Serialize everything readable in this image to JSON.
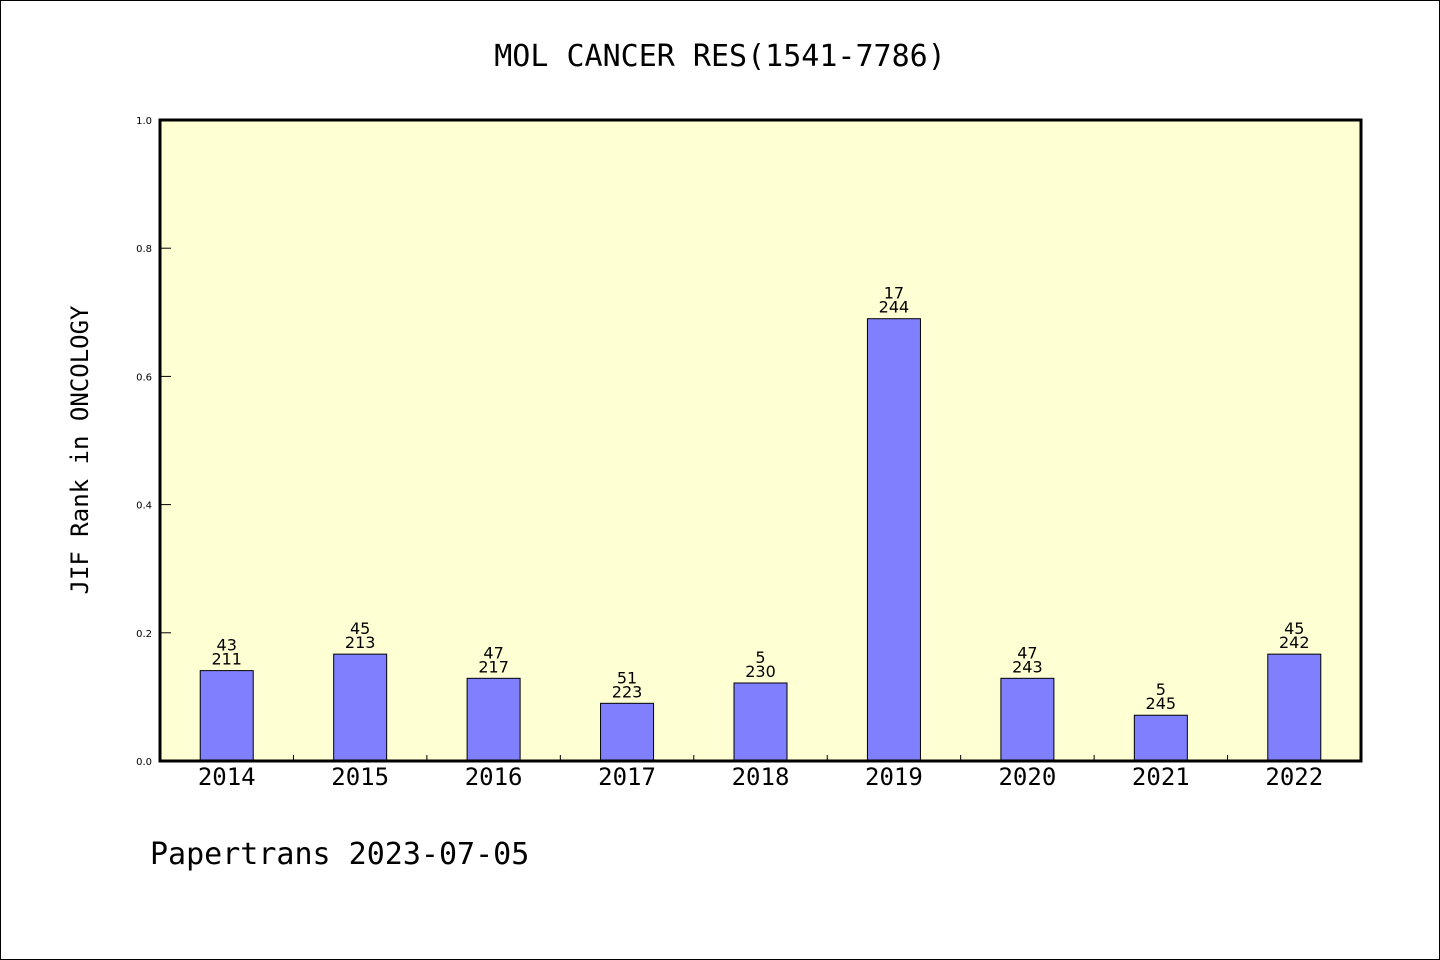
{
  "chart_data": {
    "type": "bar",
    "title": "MOL CANCER RES(1541-7786)",
    "xlabel": "",
    "ylabel": "JIF Rank in ONCOLOGY",
    "ylim": [
      0,
      1.0
    ],
    "yticks": [
      "0.0",
      "0.2",
      "0.4",
      "0.6",
      "0.8",
      "1.0"
    ],
    "categories": [
      "2014",
      "2015",
      "2016",
      "2017",
      "2018",
      "2019",
      "2020",
      "2021",
      "2022"
    ],
    "values": [
      0.141,
      0.1667,
      0.129,
      0.09,
      0.1217,
      0.69,
      0.129,
      0.0714,
      0.1667
    ],
    "rank": [
      "43",
      "45",
      "47",
      "51",
      "5",
      "17",
      "47",
      "5",
      "45"
    ],
    "total": [
      "211",
      "213",
      "217",
      "223",
      "230",
      "244",
      "243",
      "245",
      "242"
    ],
    "plot_background": "#ffffd4",
    "bar_color": "#8080ff",
    "grid": false
  },
  "footer": {
    "text": "Papertrans 2023-07-05"
  }
}
